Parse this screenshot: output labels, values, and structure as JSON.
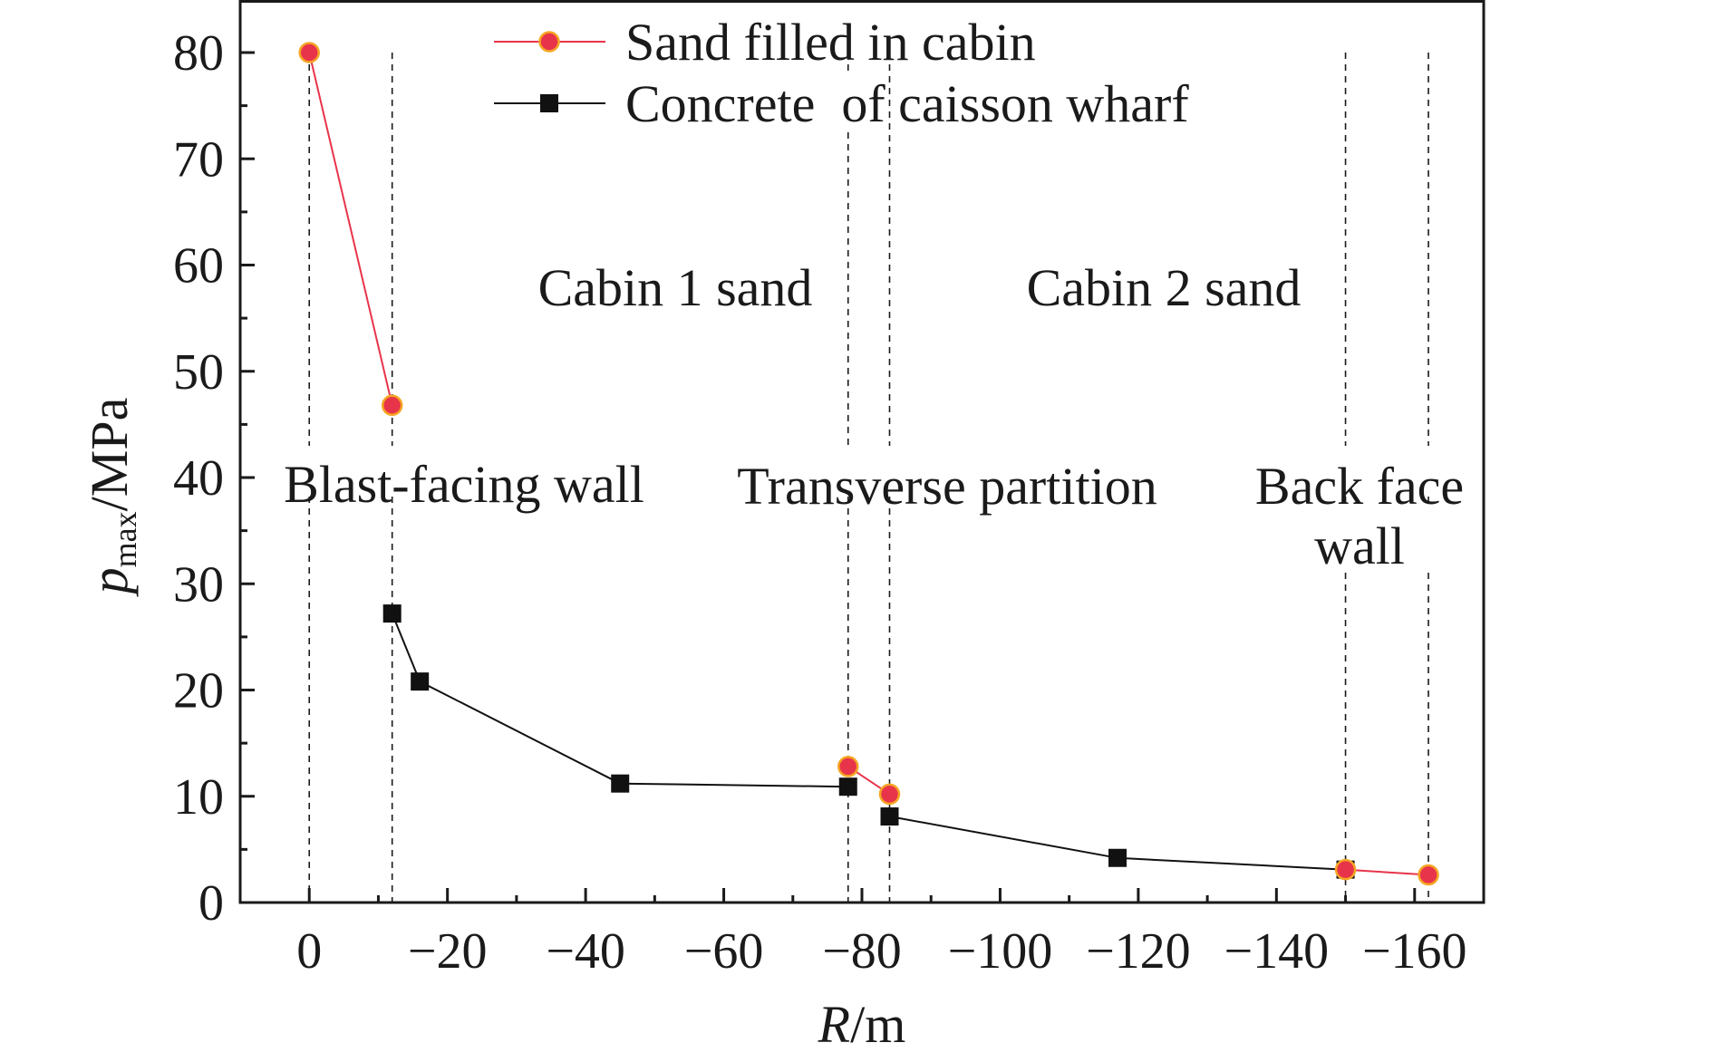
{
  "chart_data": {
    "type": "line",
    "x_axis": {
      "label_italic": "R",
      "label_rest": "/m",
      "range": [
        10,
        -170
      ],
      "ticks": [
        0,
        -20,
        -40,
        -60,
        -80,
        -100,
        -120,
        -140,
        -160
      ],
      "tick_labels": [
        "0",
        "−20",
        "−40",
        "−60",
        "−80",
        "−100",
        "−120",
        "−140",
        "−160"
      ]
    },
    "y_axis": {
      "label_italic": "p",
      "label_sub": "max",
      "label_rest": "/MPa",
      "range": [
        0,
        80
      ],
      "ticks": [
        0,
        10,
        20,
        30,
        40,
        50,
        60,
        70,
        80
      ],
      "tick_labels": [
        "0",
        "10",
        "20",
        "30",
        "40",
        "50",
        "60",
        "70",
        "80"
      ]
    },
    "grid": false,
    "legend_position": "top",
    "series": [
      {
        "name": "Sand filled in cabin",
        "color": "#e8344a",
        "marker_fill": "#e8344a",
        "marker_edge": "#f5a623",
        "marker": "circle",
        "segments": [
          [
            {
              "x": 0,
              "y": 80.0
            },
            {
              "x": -12,
              "y": 46.8
            }
          ],
          [
            {
              "x": -78,
              "y": 12.8
            },
            {
              "x": -84,
              "y": 10.2
            }
          ],
          [
            {
              "x": -150,
              "y": 3.1
            },
            {
              "x": -162,
              "y": 2.6
            }
          ]
        ]
      },
      {
        "name": "Concrete  of caisson wharf",
        "color": "#111111",
        "marker": "square",
        "segments": [
          [
            {
              "x": -12,
              "y": 27.2
            },
            {
              "x": -16,
              "y": 20.8
            },
            {
              "x": -45,
              "y": 11.2
            },
            {
              "x": -78,
              "y": 10.9
            }
          ],
          [
            {
              "x": -84,
              "y": 8.1
            },
            {
              "x": -117,
              "y": 4.2
            },
            {
              "x": -150,
              "y": 3.1
            }
          ]
        ]
      }
    ],
    "dividers_x": [
      0,
      -12,
      -78,
      -84,
      -150,
      -162
    ],
    "region_labels": [
      {
        "id": "cabin1",
        "lines": [
          "Cabin 1 sand"
        ]
      },
      {
        "id": "cabin2",
        "lines": [
          "Cabin 2 sand"
        ]
      },
      {
        "id": "blast",
        "lines": [
          "Blast-facing wall"
        ]
      },
      {
        "id": "transverse",
        "lines": [
          "Transverse partition"
        ]
      },
      {
        "id": "backface",
        "lines": [
          "Back face",
          "wall"
        ]
      }
    ]
  }
}
